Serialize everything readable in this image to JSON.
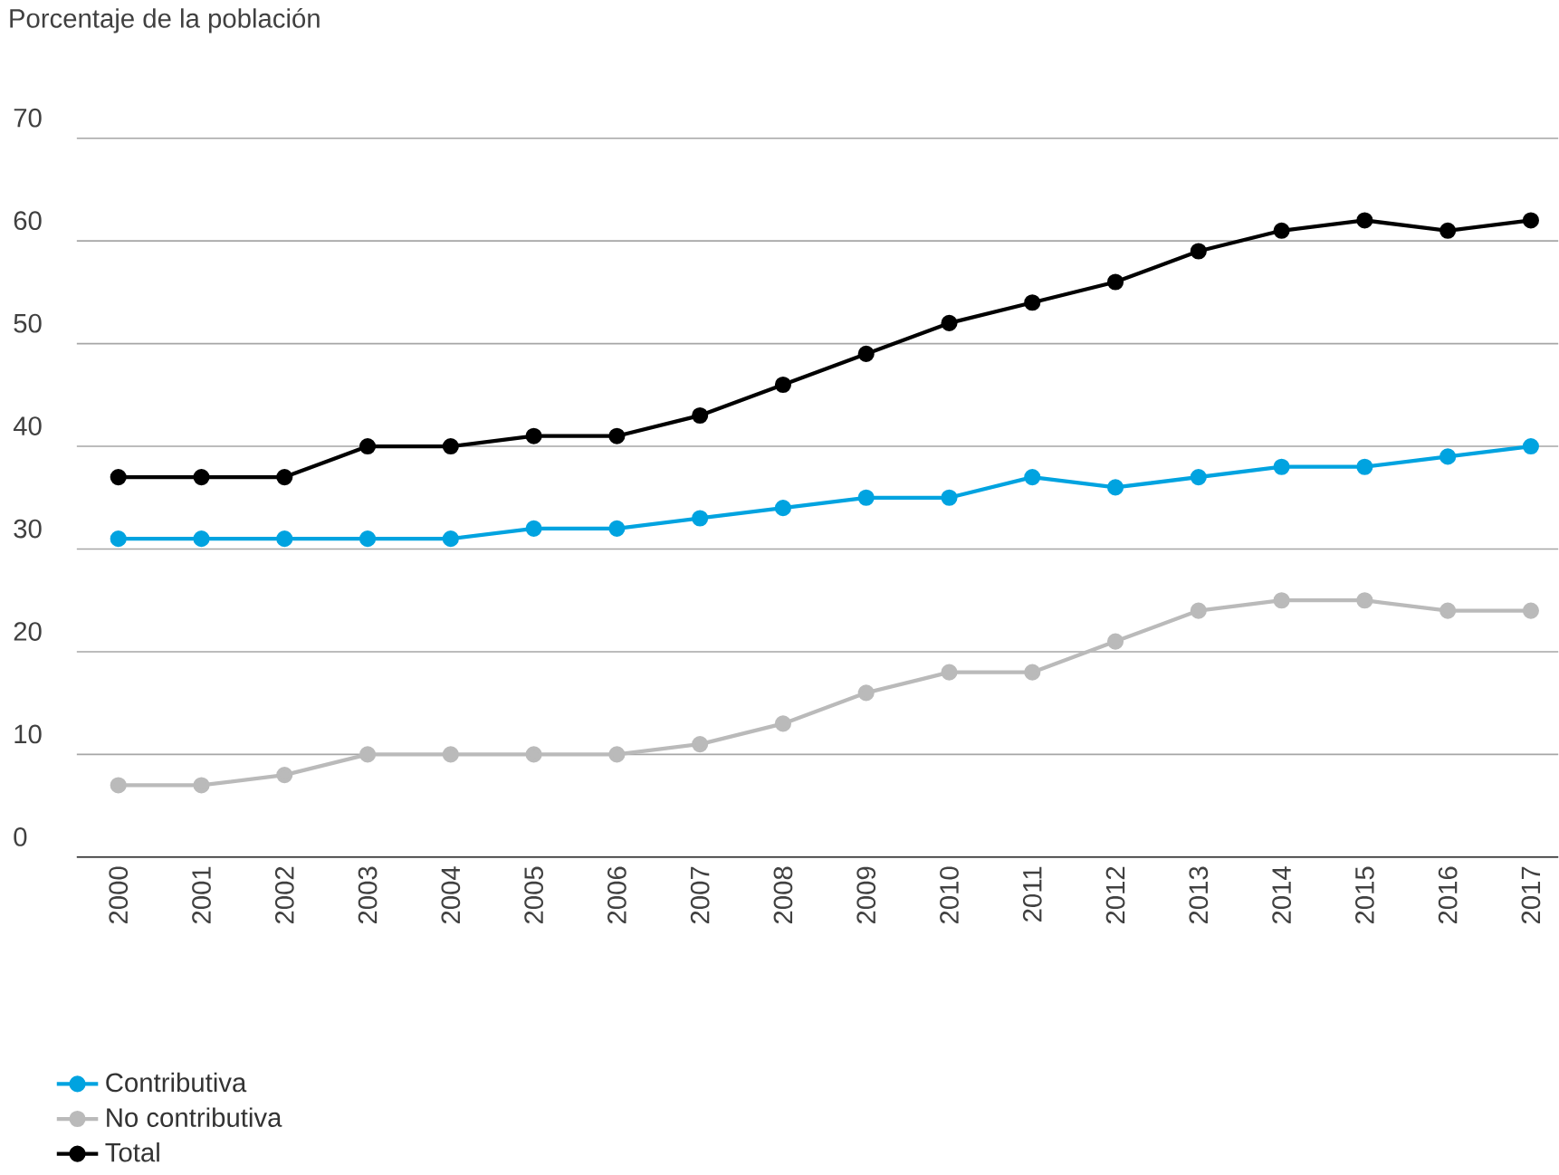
{
  "chart_data": {
    "type": "line",
    "ylabel": "Porcentaje de la población",
    "categories": [
      "2000",
      "2001",
      "2002",
      "2003",
      "2004",
      "2005",
      "2006",
      "2007",
      "2008",
      "2009",
      "2010",
      "2011",
      "2012",
      "2013",
      "2014",
      "2015",
      "2016",
      "2017"
    ],
    "series": [
      {
        "name": "Contributiva",
        "color": "#00a3e0",
        "values": [
          31,
          31,
          31,
          31,
          31,
          32,
          32,
          33,
          34,
          35,
          35,
          37,
          36,
          37,
          38,
          38,
          39,
          40
        ]
      },
      {
        "name": "No contributiva",
        "color": "#bababa",
        "values": [
          7,
          7,
          8,
          10,
          10,
          10,
          10,
          11,
          13,
          16,
          18,
          18,
          21,
          24,
          25,
          25,
          24,
          24
        ]
      },
      {
        "name": "Total",
        "color": "#000000",
        "values": [
          37,
          37,
          37,
          40,
          40,
          41,
          41,
          43,
          46,
          49,
          52,
          54,
          56,
          59,
          61,
          62,
          61,
          62
        ]
      }
    ],
    "ylim": [
      0,
      70
    ],
    "yticks": [
      0,
      10,
      20,
      30,
      40,
      50,
      60,
      70
    ],
    "grid": "y",
    "legend": "bottom left",
    "marker": "circle",
    "line_style": "solid"
  }
}
